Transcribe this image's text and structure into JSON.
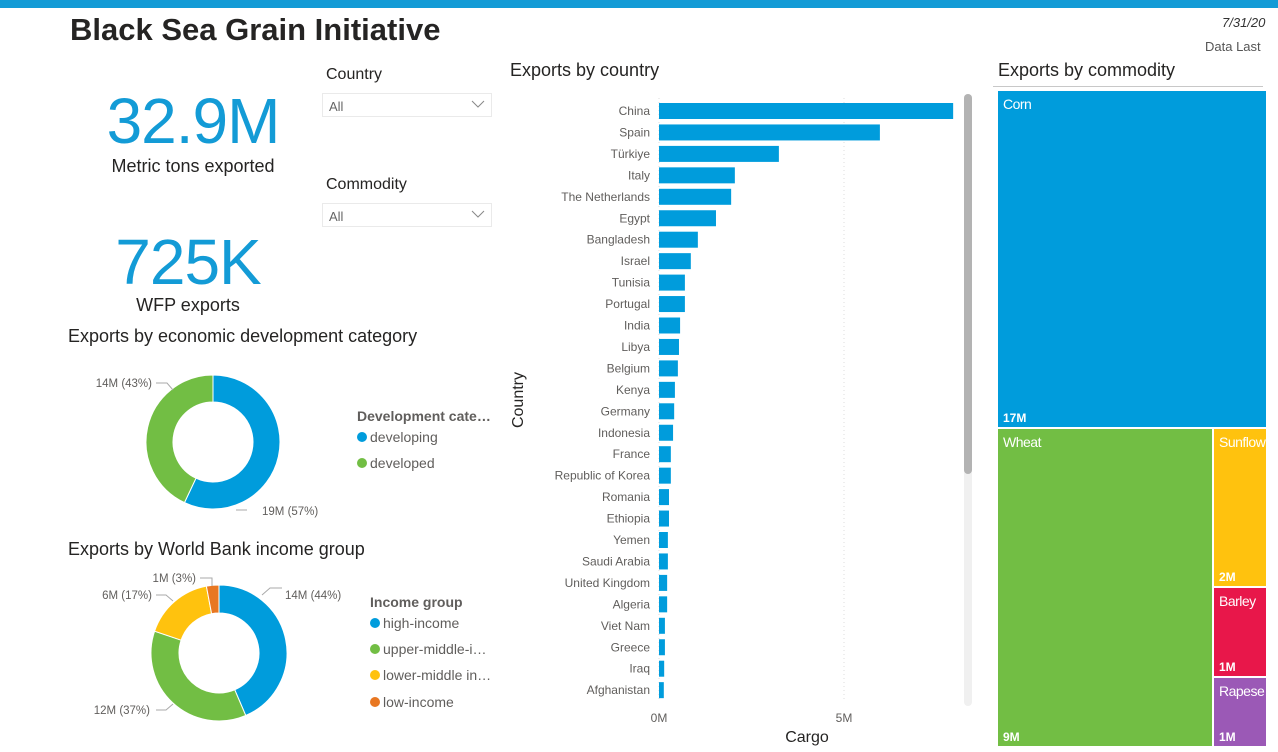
{
  "header": {
    "title": "Black Sea Grain Initiative",
    "date": "7/31/20",
    "data_updated": "Data Last"
  },
  "kpis": [
    {
      "value": "32.9M",
      "label": "Metric tons exported"
    },
    {
      "value": "725K",
      "label": "WFP exports"
    }
  ],
  "slicers": [
    {
      "label": "Country",
      "value": "All"
    },
    {
      "label": "Commodity",
      "value": "All"
    }
  ],
  "colors": {
    "accent": "#139bd6",
    "blue": "#009cdc",
    "green": "#72be44",
    "yellow": "#ffc20e",
    "orange": "#e87722",
    "red": "#e8174a",
    "purple": "#9b59b6"
  },
  "chart_data": [
    {
      "type": "pie",
      "variant": "donut",
      "title": "Exports by economic development category",
      "legend_title": "Development cate…",
      "legend_position": "right",
      "slices": [
        {
          "name": "developing",
          "value": 19,
          "percent": 57,
          "label": "19M (57%)",
          "color": "#009cdc"
        },
        {
          "name": "developed",
          "value": 14,
          "percent": 43,
          "label": "14M (43%)",
          "color": "#72be44"
        }
      ]
    },
    {
      "type": "pie",
      "variant": "donut",
      "title": "Exports by World Bank income group",
      "legend_title": "Income group",
      "legend_position": "right",
      "slices": [
        {
          "name": "high-income",
          "legend": "high-income",
          "value": 14,
          "percent": 44,
          "label": "14M (44%)",
          "color": "#009cdc"
        },
        {
          "name": "upper-middle-income",
          "legend": "upper-middle-i…",
          "value": 12,
          "percent": 37,
          "label": "12M (37%)",
          "color": "#72be44"
        },
        {
          "name": "lower-middle income",
          "legend": "lower-middle in…",
          "value": 6,
          "percent": 17,
          "label": "6M (17%)",
          "color": "#ffc20e"
        },
        {
          "name": "low-income",
          "legend": "low-income",
          "value": 1,
          "percent": 3,
          "label": "1M (3%)",
          "color": "#e87722"
        }
      ]
    },
    {
      "type": "bar",
      "orientation": "horizontal",
      "title": "Exports by country",
      "xlabel": "Cargo",
      "ylabel": "Country",
      "xlim": [
        0,
        8.2
      ],
      "xticks": [
        {
          "value": 0,
          "label": "0M"
        },
        {
          "value": 5,
          "label": "5M"
        }
      ],
      "grid": true,
      "unit": "M metric tons",
      "categories": [
        "China",
        "Spain",
        "Türkiye",
        "Italy",
        "The Netherlands",
        "Egypt",
        "Bangladesh",
        "Israel",
        "Tunisia",
        "Portugal",
        "India",
        "Libya",
        "Belgium",
        "Kenya",
        "Germany",
        "Indonesia",
        "France",
        "Republic of Korea",
        "Romania",
        "Ethiopia",
        "Yemen",
        "Saudi Arabia",
        "United Kingdom",
        "Algeria",
        "Viet Nam",
        "Greece",
        "Iraq",
        "Afghanistan"
      ],
      "values": [
        7.95,
        5.97,
        3.24,
        2.05,
        1.95,
        1.54,
        1.05,
        0.86,
        0.7,
        0.7,
        0.57,
        0.54,
        0.51,
        0.43,
        0.41,
        0.38,
        0.32,
        0.32,
        0.27,
        0.27,
        0.24,
        0.24,
        0.22,
        0.22,
        0.16,
        0.16,
        0.14,
        0.13
      ]
    },
    {
      "type": "treemap",
      "title": "Exports by commodity",
      "items": [
        {
          "name": "Corn",
          "label": "Corn",
          "value_label": "17M",
          "value": 17,
          "color": "#009cdc"
        },
        {
          "name": "Wheat",
          "label": "Wheat",
          "value_label": "9M",
          "value": 9,
          "color": "#72be44"
        },
        {
          "name": "Sunflower",
          "label": "Sunflow",
          "value_label": "2M",
          "value": 2,
          "color": "#ffc20e"
        },
        {
          "name": "Barley",
          "label": "Barley",
          "value_label": "1M",
          "value": 1,
          "color": "#e8174a"
        },
        {
          "name": "Rapeseed",
          "label": "Rapese",
          "value_label": "1M",
          "value": 1,
          "color": "#9b59b6"
        }
      ]
    }
  ]
}
